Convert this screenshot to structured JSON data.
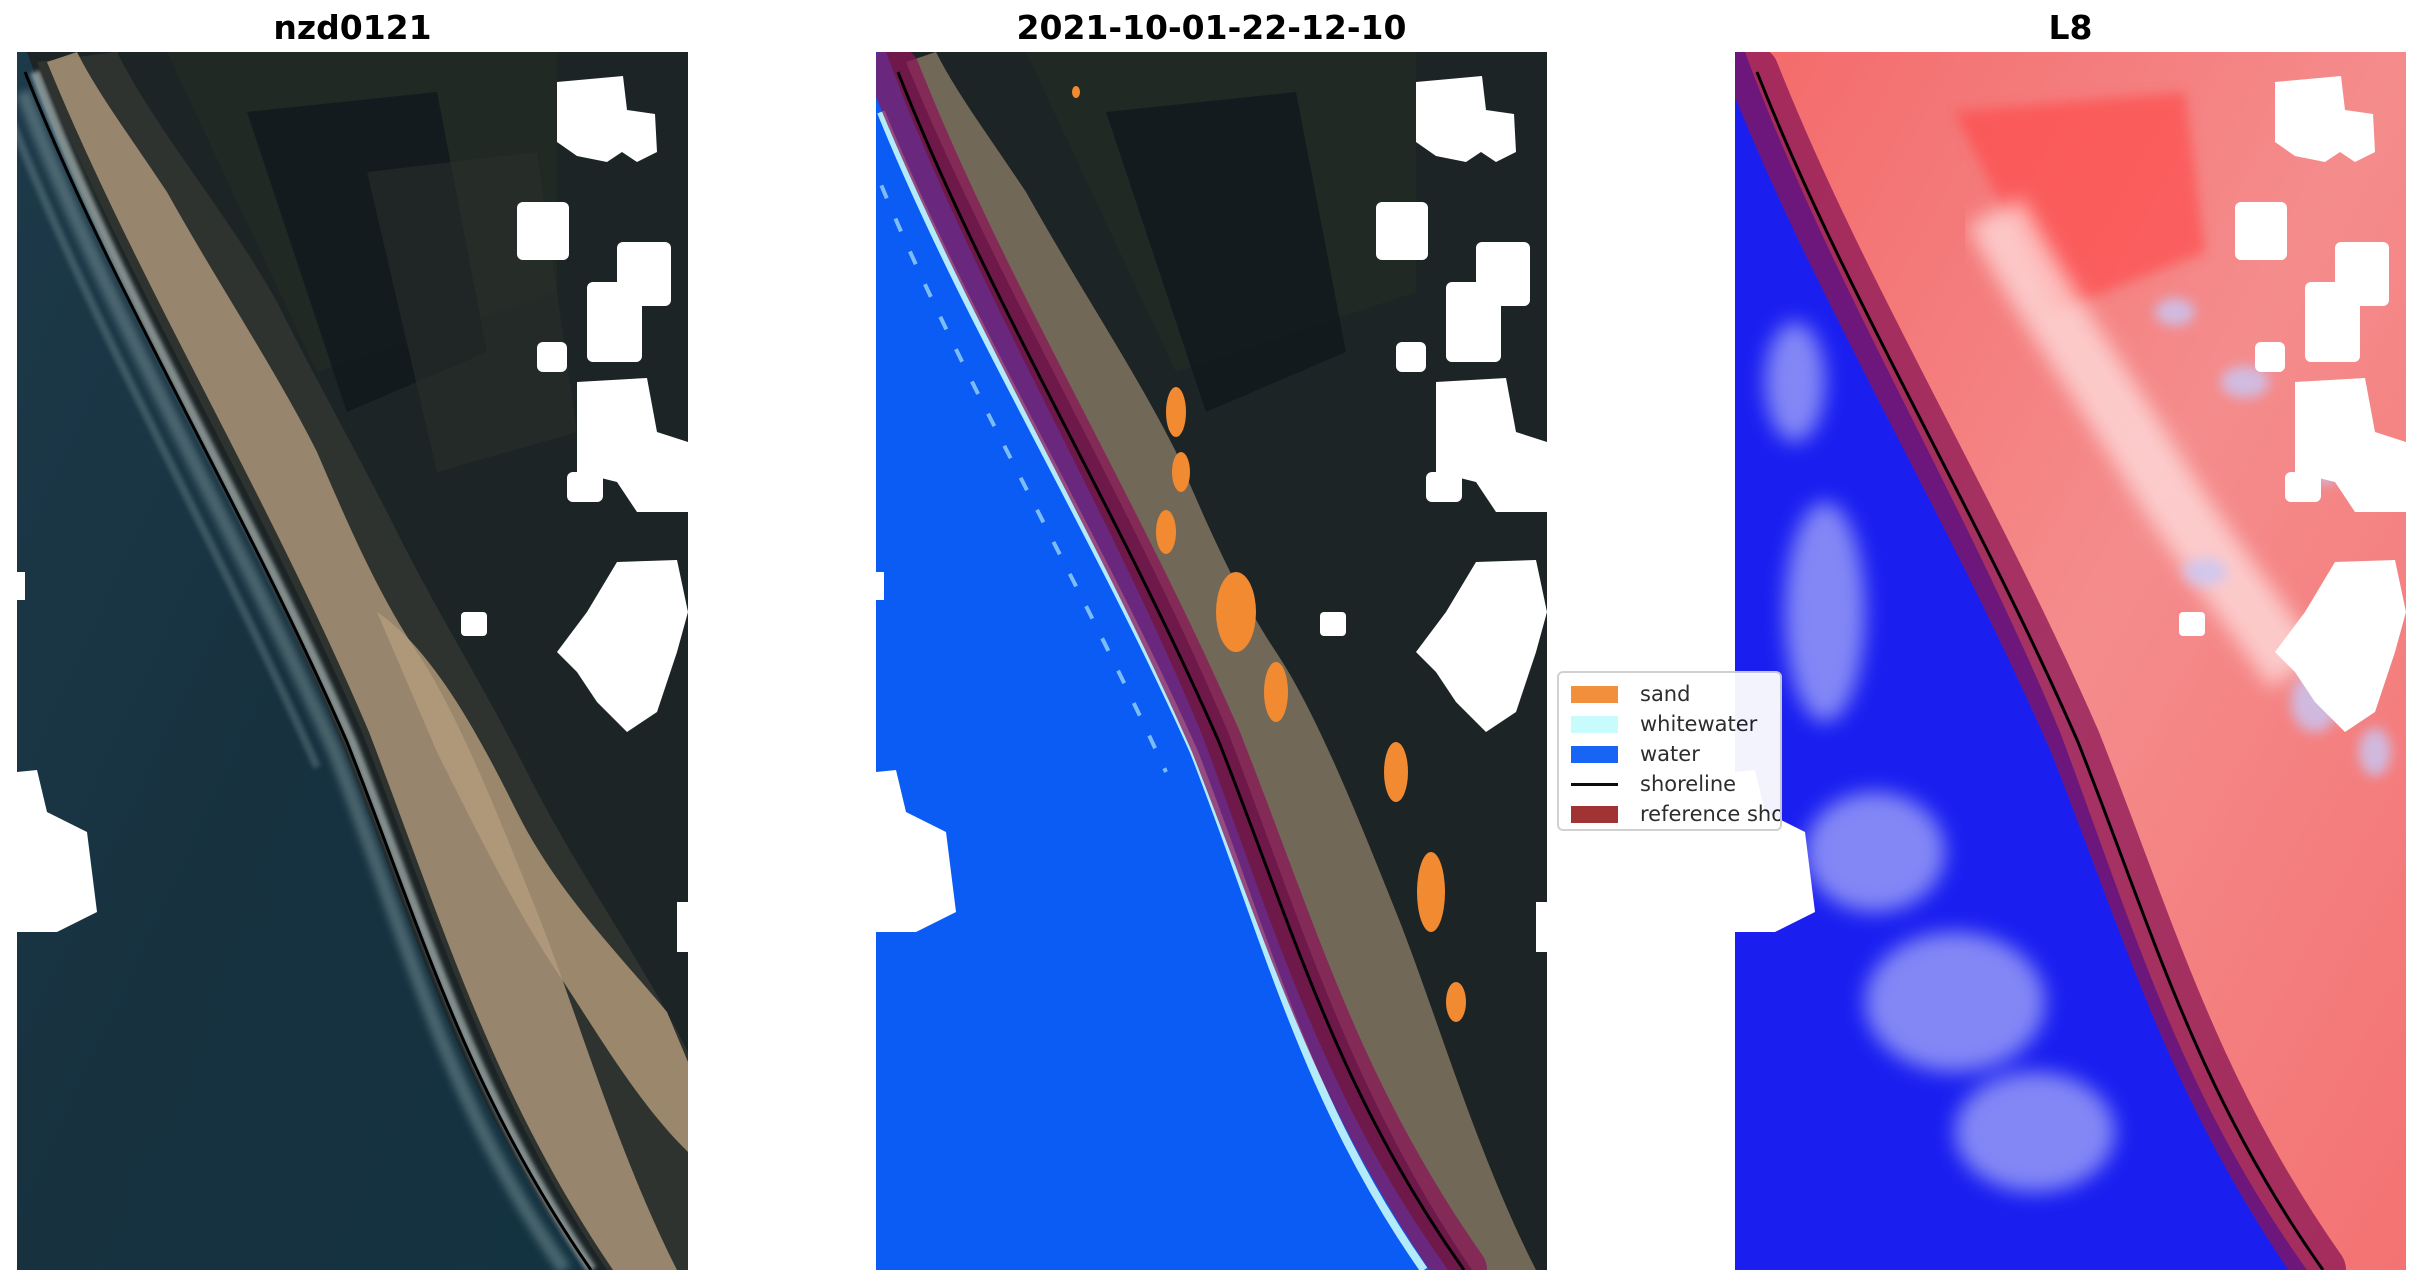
{
  "panels": [
    {
      "title": "nzd0121"
    },
    {
      "title": "2021-10-01-22-12-10"
    },
    {
      "title": "L8"
    }
  ],
  "legend": {
    "items": [
      {
        "label": "sand",
        "color": "#f28a32",
        "kind": "patch"
      },
      {
        "label": "whitewater",
        "color": "#c6fbfb",
        "kind": "patch"
      },
      {
        "label": "water",
        "color": "#0b5cf5",
        "kind": "patch"
      },
      {
        "label": "shoreline",
        "color": "#000000",
        "kind": "line"
      },
      {
        "label": "reference shoreline",
        "color": "#9b2a2a",
        "kind": "patch"
      }
    ]
  },
  "colors": {
    "ocean": "#16303f",
    "land": "#1b2325",
    "beach": "#b09878",
    "water_class": "#0b5cf5",
    "buffer": "#8a1656",
    "index_water": "#1a1ff0",
    "index_land": "#f36a6a"
  }
}
